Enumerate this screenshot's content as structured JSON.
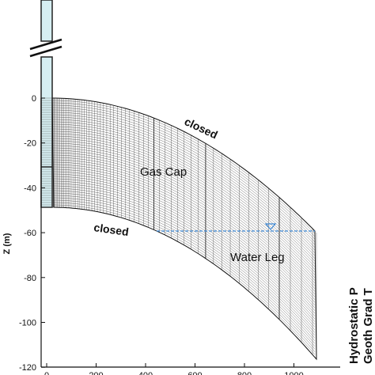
{
  "diagram": {
    "y_axis": {
      "label": "Z (m)",
      "ticks": [
        "0",
        "-20",
        "-40",
        "-60",
        "-80",
        "-100",
        "-120"
      ]
    },
    "x_axis": {
      "ticks": [
        "0",
        "200",
        "400",
        "600",
        "800",
        "1000"
      ]
    },
    "labels": {
      "gas_cap": "Gas Cap",
      "water_leg": "Water Leg",
      "closed_top": "closed",
      "closed_left": "closed",
      "hydrostatic": "Hydrostatic P",
      "geoth": "Geoth Grad T"
    },
    "colors": {
      "well": "#d6eef2",
      "water_table": "#3a86d4",
      "mesh": "#333333"
    }
  }
}
